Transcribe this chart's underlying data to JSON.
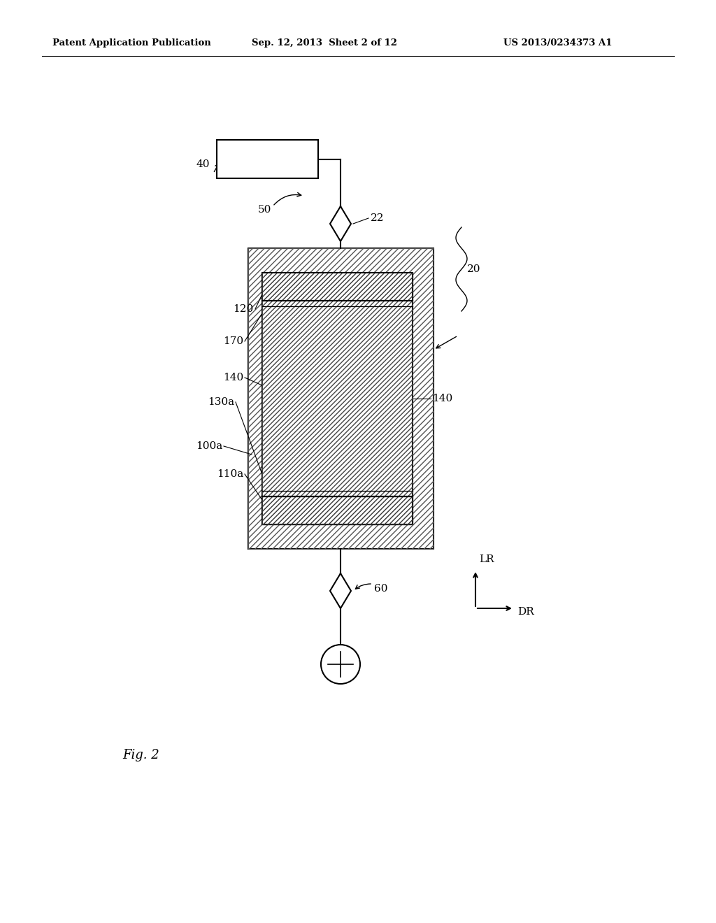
{
  "bg_color": "#ffffff",
  "line_color": "#000000",
  "header_left": "Patent Application Publication",
  "header_mid": "Sep. 12, 2013  Sheet 2 of 12",
  "header_right": "US 2013/0234373 A1",
  "fig_label": "Fig. 2"
}
